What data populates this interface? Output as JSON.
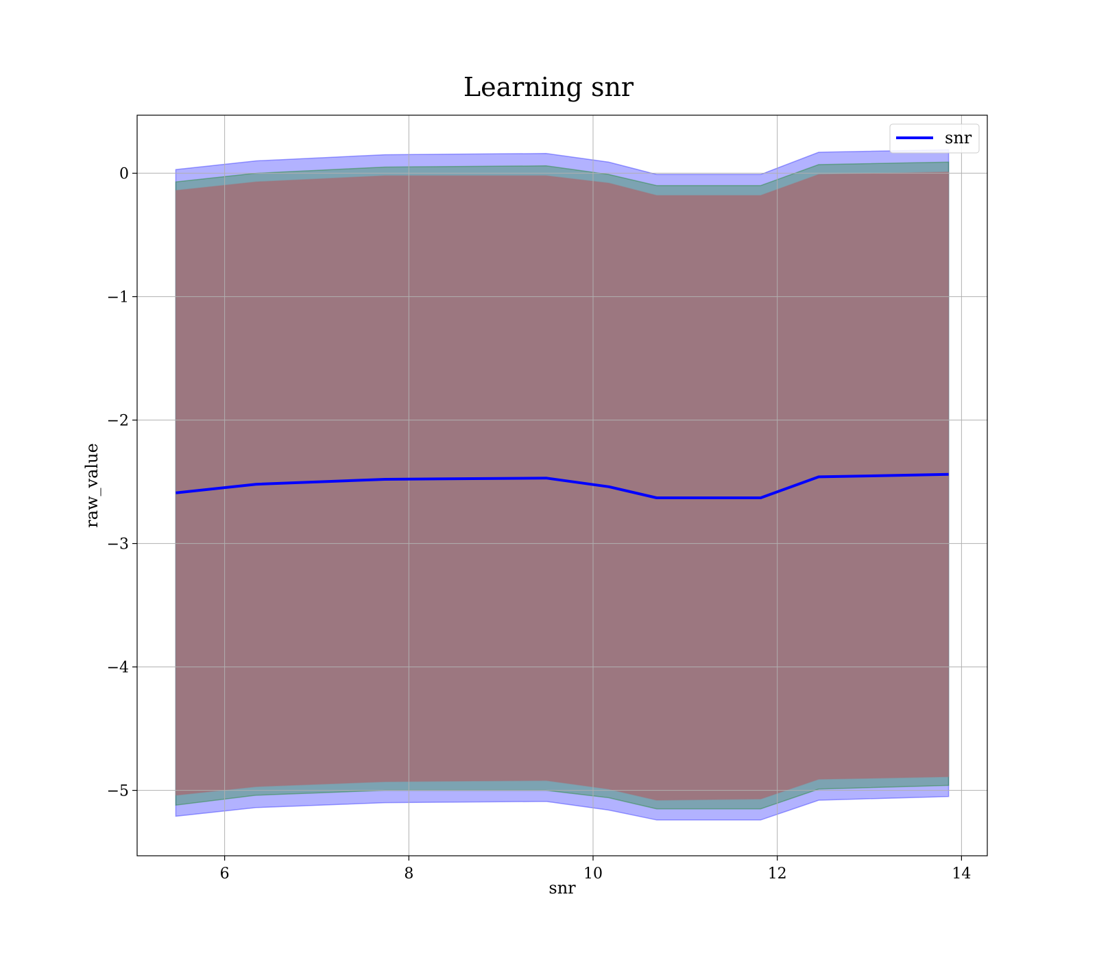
{
  "chart_data": {
    "type": "area",
    "title": "Learning snr",
    "xlabel": "snr",
    "ylabel": "raw_value",
    "xlim": [
      5.05,
      14.28
    ],
    "ylim": [
      -5.53,
      0.47
    ],
    "xticks": [
      6,
      8,
      10,
      12,
      14
    ],
    "yticks": [
      0,
      -1,
      -2,
      -3,
      -4,
      -5
    ],
    "xtick_labels": [
      "6",
      "8",
      "10",
      "12",
      "14"
    ],
    "ytick_labels": [
      "0",
      "−1",
      "−2",
      "−3",
      "−4",
      "−5"
    ],
    "grid": true,
    "legend_position": "top-right",
    "x": [
      5.47,
      6.34,
      7.74,
      9.49,
      10.17,
      10.69,
      11.82,
      12.45,
      13.86
    ],
    "series": [
      {
        "name": "snr",
        "color": "#0000ff",
        "values": [
          -2.59,
          -2.52,
          -2.48,
          -2.47,
          -2.54,
          -2.63,
          -2.63,
          -2.46,
          -2.44
        ]
      }
    ],
    "bands": [
      {
        "color": "#0000ff",
        "upper": [
          0.03,
          0.1,
          0.15,
          0.16,
          0.09,
          -0.01,
          -0.01,
          0.17,
          0.19
        ],
        "lower": [
          -5.21,
          -5.14,
          -5.1,
          -5.09,
          -5.16,
          -5.24,
          -5.24,
          -5.08,
          -5.05
        ]
      },
      {
        "color": "#008000",
        "upper": [
          -0.07,
          0.0,
          0.05,
          0.06,
          -0.01,
          -0.1,
          -0.1,
          0.07,
          0.09
        ],
        "lower": [
          -5.12,
          -5.04,
          -5.0,
          -5.0,
          -5.06,
          -5.15,
          -5.15,
          -4.99,
          -4.96
        ]
      },
      {
        "color": "#a0727a",
        "upper": [
          -0.14,
          -0.07,
          -0.02,
          -0.02,
          -0.08,
          -0.18,
          -0.18,
          -0.01,
          0.01
        ],
        "lower": [
          -5.04,
          -4.97,
          -4.93,
          -4.92,
          -4.99,
          -5.08,
          -5.07,
          -4.91,
          -4.89
        ]
      }
    ]
  }
}
